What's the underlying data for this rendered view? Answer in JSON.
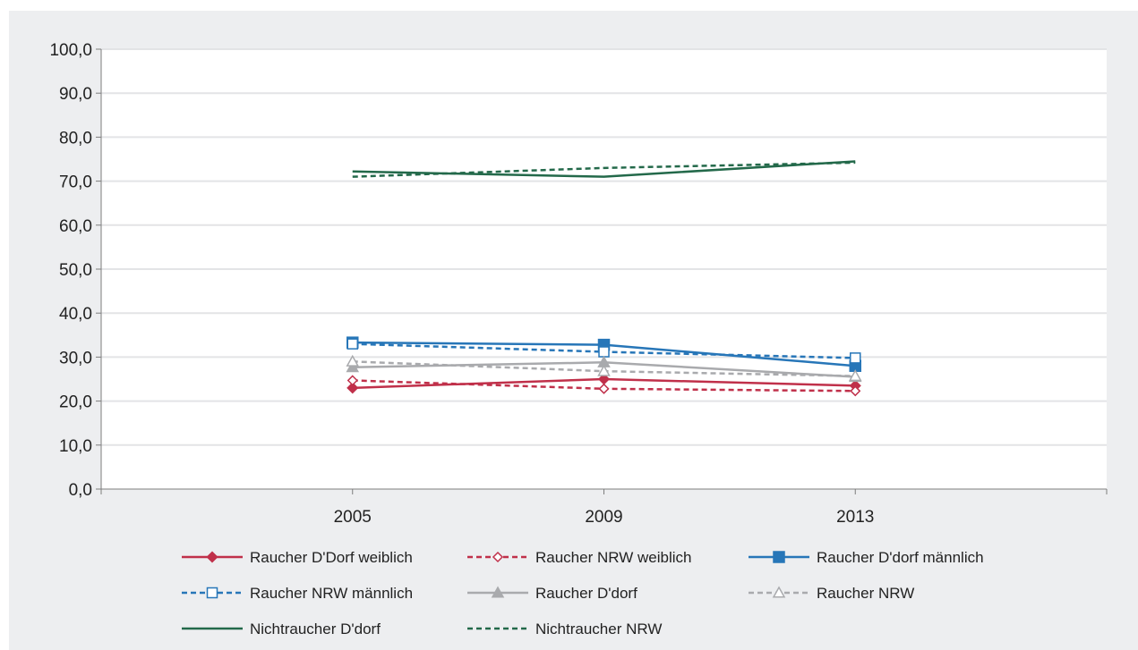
{
  "chart_data": {
    "type": "line",
    "title": "",
    "xlabel": "",
    "ylabel": "",
    "categories": [
      "2005",
      "2009",
      "2013"
    ],
    "ylim": [
      0,
      100
    ],
    "yticks": [
      "0,0",
      "10,0",
      "20,0",
      "30,0",
      "40,0",
      "50,0",
      "60,0",
      "70,0",
      "80,0",
      "90,0",
      "100,0"
    ],
    "grid": true,
    "legend_position": "bottom",
    "series": [
      {
        "name": "Raucher D'Dorf weiblich",
        "values": [
          23.0,
          25.0,
          23.5
        ],
        "color": "#c0304a",
        "dash": false,
        "marker": "diamond-filled"
      },
      {
        "name": "Raucher NRW weiblich",
        "values": [
          24.7,
          22.8,
          22.3
        ],
        "color": "#c0304a",
        "dash": true,
        "marker": "diamond-open"
      },
      {
        "name": "Raucher D'dorf männlich",
        "values": [
          33.3,
          32.8,
          28.0
        ],
        "color": "#2776b8",
        "dash": false,
        "marker": "square-filled"
      },
      {
        "name": "Raucher NRW männlich",
        "values": [
          33.0,
          31.2,
          29.8
        ],
        "color": "#2776b8",
        "dash": true,
        "marker": "square-open"
      },
      {
        "name": "Raucher D'dorf",
        "values": [
          27.7,
          28.8,
          25.5
        ],
        "color": "#a9aaad",
        "dash": false,
        "marker": "triangle-filled"
      },
      {
        "name": "Raucher NRW",
        "values": [
          29.0,
          26.8,
          25.7
        ],
        "color": "#a9aaad",
        "dash": true,
        "marker": "triangle-open"
      },
      {
        "name": "Nichtraucher D'dorf",
        "values": [
          72.2,
          71.0,
          74.5
        ],
        "color": "#23694a",
        "dash": false,
        "marker": "none"
      },
      {
        "name": "Nichtraucher NRW",
        "values": [
          71.0,
          73.0,
          74.2
        ],
        "color": "#23694a",
        "dash": true,
        "marker": "none"
      }
    ]
  }
}
